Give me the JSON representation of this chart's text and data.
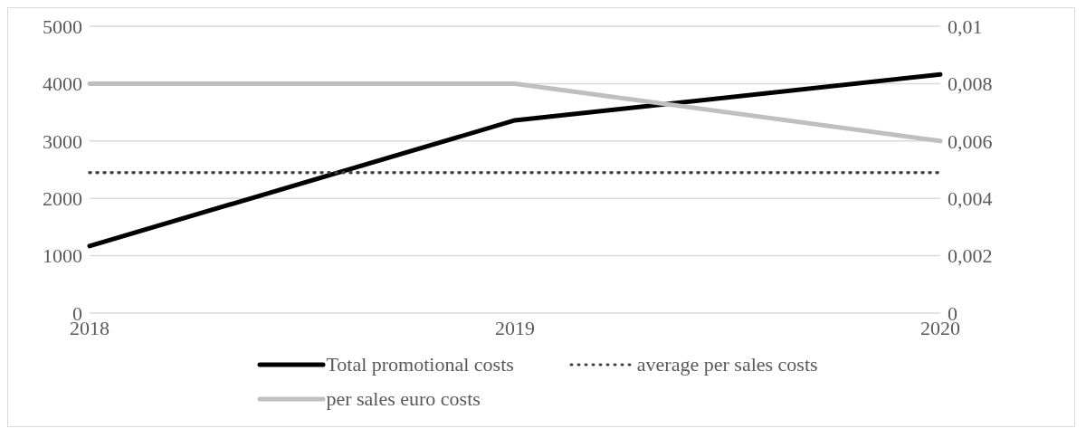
{
  "chart_data": {
    "type": "line",
    "categories": [
      "2018",
      "2019",
      "2020"
    ],
    "series": [
      {
        "name": "Total promotional costs",
        "color": "#000000",
        "values": [
          1170,
          3360,
          4160
        ],
        "line_style": "solid"
      },
      {
        "name": "average per sales costs",
        "color": "#404040",
        "values": [
          0.0049,
          0.0049,
          0.0049
        ],
        "axis": "y2",
        "line_style": "dotted"
      },
      {
        "name": "per sales euro costs",
        "color": "#bfbfbf",
        "values": [
          0.008,
          0.008,
          0.006
        ],
        "axis": "y2",
        "line_style": "solid"
      }
    ],
    "ylim": [
      0,
      5000
    ],
    "yticks": [
      0,
      1000,
      2000,
      3000,
      4000,
      5000
    ],
    "y2lim": [
      0,
      0.01
    ],
    "y2ticks": [
      {
        "value": 0,
        "label": "0"
      },
      {
        "value": 0.002,
        "label": "0,002"
      },
      {
        "value": 0.004,
        "label": "0,004"
      },
      {
        "value": 0.006,
        "label": "0,006"
      },
      {
        "value": 0.008,
        "label": "0,008"
      },
      {
        "value": 0.01,
        "label": "0,01"
      }
    ],
    "grid": "y",
    "legend": "bottom",
    "marker": "none"
  }
}
